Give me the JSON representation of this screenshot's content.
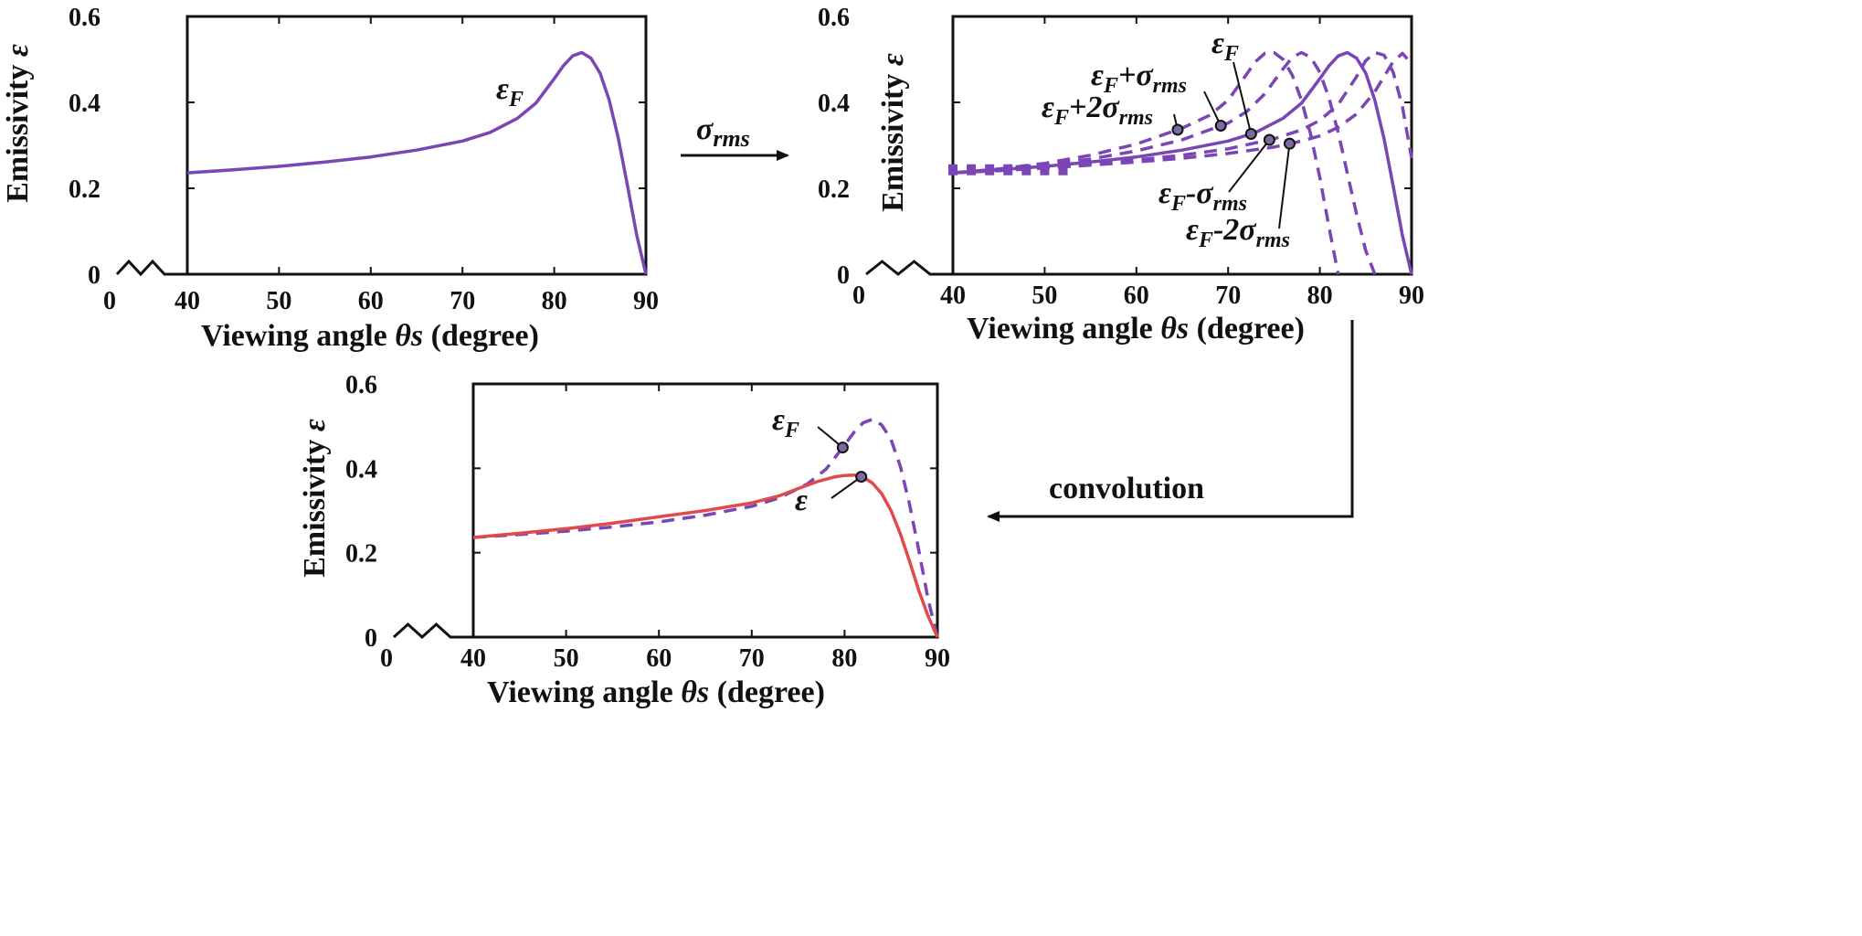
{
  "colors": {
    "purple": "#7a45b5",
    "red": "#e04a4a",
    "axis": "#111111"
  },
  "flow_labels": {
    "sigma": "σ",
    "sigma_sub": "rms",
    "convolution": "convolution"
  },
  "chart_data": [
    {
      "id": "panel-a",
      "type": "line",
      "xlabel_pre": "Viewing angle ",
      "xlabel_italic": "θs",
      "xlabel_post": " (degree)",
      "ylabel_pre": "Emissivity ",
      "ylabel_italic": "ε",
      "xlim": [
        0,
        90
      ],
      "ylim": [
        0,
        0.6
      ],
      "x_ticks": [
        0,
        40,
        50,
        60,
        70,
        80,
        90
      ],
      "y_ticks": [
        0,
        0.2,
        0.4,
        0.6
      ],
      "x_tick_labels": [
        "0",
        "40",
        "50",
        "60",
        "70",
        "80",
        "90"
      ],
      "y_tick_labels": [
        "0",
        "0.2",
        "0.4",
        "0.6"
      ],
      "axis_break": [
        2,
        8
      ],
      "series": [
        {
          "name": "εF",
          "style": "solid",
          "color": "purple",
          "x": [
            40,
            45,
            50,
            55,
            60,
            65,
            70,
            73,
            76,
            78,
            80,
            81,
            82,
            83,
            84,
            85,
            86,
            87,
            88,
            89,
            90
          ],
          "y": [
            0.236,
            0.243,
            0.251,
            0.261,
            0.273,
            0.289,
            0.31,
            0.33,
            0.363,
            0.398,
            0.455,
            0.485,
            0.508,
            0.516,
            0.503,
            0.468,
            0.405,
            0.315,
            0.205,
            0.09,
            0.0
          ]
        }
      ],
      "annotations": [
        {
          "main": "ε",
          "sub": "F",
          "rest": "",
          "rest_sub": ""
        }
      ]
    },
    {
      "id": "panel-b",
      "type": "line",
      "xlabel_pre": "Viewing angle ",
      "xlabel_italic": "θs",
      "xlabel_post": " (degree)",
      "ylabel_pre": "Emissivity ",
      "ylabel_italic": "ε",
      "xlim": [
        0,
        90
      ],
      "ylim": [
        0,
        0.6
      ],
      "x_ticks": [
        0,
        40,
        50,
        60,
        70,
        80,
        90
      ],
      "y_ticks": [
        0,
        0.2,
        0.4,
        0.6
      ],
      "x_tick_labels": [
        "0",
        "40",
        "50",
        "60",
        "70",
        "80",
        "90"
      ],
      "y_tick_labels": [
        "0",
        "0.2",
        "0.4",
        "0.6"
      ],
      "axis_break": [
        2,
        8
      ],
      "series": [
        {
          "name": "εF+2σrms",
          "style": "dashed",
          "color": "purple",
          "x": [
            40,
            45,
            50,
            55,
            60,
            65,
            68,
            70,
            72,
            73,
            74,
            75,
            76,
            77,
            78,
            79,
            80,
            81,
            82
          ],
          "y": [
            0.236,
            0.245,
            0.258,
            0.277,
            0.303,
            0.34,
            0.37,
            0.405,
            0.465,
            0.495,
            0.514,
            0.516,
            0.5,
            0.463,
            0.405,
            0.325,
            0.225,
            0.11,
            0.0
          ]
        },
        {
          "name": "εF+σrms",
          "style": "dashed",
          "color": "purple",
          "x": [
            40,
            45,
            50,
            55,
            60,
            65,
            70,
            72,
            74,
            76,
            77,
            78,
            79,
            80,
            81,
            82,
            83,
            84,
            85,
            86
          ],
          "y": [
            0.236,
            0.244,
            0.254,
            0.268,
            0.287,
            0.313,
            0.352,
            0.378,
            0.42,
            0.478,
            0.505,
            0.516,
            0.505,
            0.47,
            0.41,
            0.33,
            0.235,
            0.14,
            0.055,
            0.0
          ]
        },
        {
          "name": "εF",
          "style": "solid",
          "color": "purple",
          "x": [
            40,
            45,
            50,
            55,
            60,
            65,
            70,
            73,
            76,
            78,
            80,
            81,
            82,
            83,
            84,
            85,
            86,
            87,
            88,
            89,
            90
          ],
          "y": [
            0.236,
            0.243,
            0.251,
            0.261,
            0.273,
            0.289,
            0.31,
            0.33,
            0.363,
            0.398,
            0.455,
            0.485,
            0.508,
            0.516,
            0.503,
            0.468,
            0.405,
            0.315,
            0.205,
            0.09,
            0.0
          ]
        },
        {
          "name": "εF-σrms",
          "style": "dashed",
          "color": "purple",
          "x": [
            40,
            45,
            50,
            55,
            60,
            65,
            70,
            75,
            78,
            80,
            82,
            84,
            85,
            86,
            87,
            88,
            89,
            90
          ],
          "y": [
            0.236,
            0.242,
            0.249,
            0.257,
            0.266,
            0.277,
            0.292,
            0.315,
            0.336,
            0.358,
            0.395,
            0.46,
            0.497,
            0.516,
            0.51,
            0.47,
            0.39,
            0.27
          ]
        },
        {
          "name": "εF-2σrms",
          "style": "dashed",
          "color": "purple",
          "x": [
            40,
            45,
            50,
            55,
            60,
            65,
            70,
            75,
            78,
            80,
            82,
            84,
            86,
            87,
            88,
            89,
            90
          ],
          "y": [
            0.236,
            0.241,
            0.247,
            0.254,
            0.261,
            0.27,
            0.281,
            0.296,
            0.31,
            0.322,
            0.342,
            0.373,
            0.425,
            0.46,
            0.495,
            0.514,
            0.49
          ]
        }
      ],
      "annotations": [
        {
          "main": "ε",
          "sub": "F",
          "rest": "",
          "rest_sub": ""
        },
        {
          "main": "ε",
          "sub": "F",
          "rest": "+σ",
          "rest_sub": "rms"
        },
        {
          "main": "ε",
          "sub": "F",
          "rest": "+2σ",
          "rest_sub": "rms"
        },
        {
          "main": "ε",
          "sub": "F",
          "rest": "-σ",
          "rest_sub": "rms"
        },
        {
          "main": "ε",
          "sub": "F",
          "rest": "-2σ",
          "rest_sub": "rms"
        }
      ]
    },
    {
      "id": "panel-c",
      "type": "line",
      "xlabel_pre": "Viewing angle ",
      "xlabel_italic": "θs",
      "xlabel_post": " (degree)",
      "ylabel_pre": "Emissivity ",
      "ylabel_italic": "ε",
      "xlim": [
        0,
        90
      ],
      "ylim": [
        0,
        0.6
      ],
      "x_ticks": [
        0,
        40,
        50,
        60,
        70,
        80,
        90
      ],
      "y_ticks": [
        0,
        0.2,
        0.4,
        0.6
      ],
      "x_tick_labels": [
        "0",
        "40",
        "50",
        "60",
        "70",
        "80",
        "90"
      ],
      "y_tick_labels": [
        "0",
        "0.2",
        "0.4",
        "0.6"
      ],
      "axis_break": [
        2,
        8
      ],
      "series": [
        {
          "name": "εF",
          "style": "dashed",
          "color": "purple",
          "x": [
            40,
            45,
            50,
            55,
            60,
            65,
            70,
            73,
            76,
            78,
            80,
            81,
            82,
            83,
            84,
            85,
            86,
            87,
            88,
            89,
            90
          ],
          "y": [
            0.236,
            0.243,
            0.251,
            0.261,
            0.273,
            0.289,
            0.31,
            0.33,
            0.363,
            0.398,
            0.455,
            0.485,
            0.508,
            0.516,
            0.503,
            0.468,
            0.405,
            0.315,
            0.205,
            0.09,
            0.0
          ]
        },
        {
          "name": "ε",
          "style": "solid",
          "color": "red",
          "x": [
            40,
            45,
            50,
            55,
            60,
            65,
            70,
            73,
            75,
            77,
            79,
            80,
            81,
            82,
            83,
            84,
            85,
            86,
            87,
            88,
            89,
            90
          ],
          "y": [
            0.236,
            0.246,
            0.257,
            0.27,
            0.285,
            0.3,
            0.318,
            0.335,
            0.352,
            0.368,
            0.38,
            0.383,
            0.384,
            0.379,
            0.365,
            0.34,
            0.3,
            0.245,
            0.18,
            0.11,
            0.05,
            0.0
          ]
        }
      ],
      "annotations": [
        {
          "main": "ε",
          "sub": "F",
          "rest": "",
          "rest_sub": ""
        },
        {
          "main": "ε",
          "sub": "",
          "rest": "",
          "rest_sub": ""
        }
      ]
    }
  ]
}
